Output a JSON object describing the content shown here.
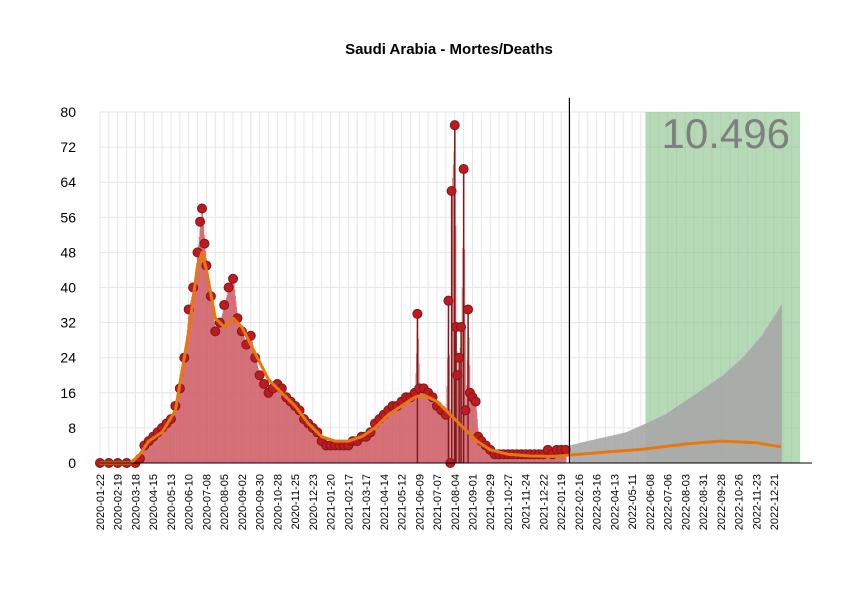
{
  "chart_data": {
    "type": "bar",
    "title": "Saudi Arabia - Mortes/Deaths",
    "total_label": "10.496",
    "xlabel": "",
    "ylabel": "",
    "ylim": [
      0,
      80
    ],
    "y_ticks": [
      0,
      8,
      16,
      24,
      32,
      40,
      48,
      56,
      64,
      72,
      80
    ],
    "x_range": [
      "2020-01-22",
      "2023-01-31"
    ],
    "x_ticks": [
      "2020-01-22",
      "2020-02-19",
      "2020-03-18",
      "2020-04-15",
      "2020-05-13",
      "2020-06-10",
      "2020-07-08",
      "2020-08-05",
      "2020-09-02",
      "2020-09-30",
      "2020-10-28",
      "2020-11-25",
      "2020-12-23",
      "2021-01-20",
      "2021-02-17",
      "2021-03-17",
      "2021-04-14",
      "2021-05-12",
      "2021-06-09",
      "2021-07-07",
      "2021-08-04",
      "2021-09-01",
      "2021-09-29",
      "2021-10-27",
      "2021-11-24",
      "2021-12-22",
      "2022-01-19",
      "2022-02-16",
      "2022-03-16",
      "2022-04-13",
      "2022-05-11",
      "2022-06-08",
      "2022-07-06",
      "2022-08-03",
      "2022-08-31",
      "2022-09-28",
      "2022-10-26",
      "2022-11-23",
      "2022-12-21"
    ],
    "today_marker": "2022-02-01",
    "forecast_band": [
      "2022-06-01",
      "2023-01-31"
    ],
    "grid": true,
    "colors": {
      "observed_bar": "#d0626a",
      "observed_point": "#c0191f",
      "point_edge": "#7a1a1a",
      "smooth_line": "#e8780e",
      "projection_bar": "#a8a8a8",
      "forecast_band": "#8fc48f",
      "grid": "#e6e6e6"
    },
    "observed": [
      {
        "date": "2020-01-22",
        "value": 0
      },
      {
        "date": "2020-02-05",
        "value": 0
      },
      {
        "date": "2020-02-19",
        "value": 0
      },
      {
        "date": "2020-03-04",
        "value": 0
      },
      {
        "date": "2020-03-18",
        "value": 0
      },
      {
        "date": "2020-03-25",
        "value": 1
      },
      {
        "date": "2020-04-01",
        "value": 4
      },
      {
        "date": "2020-04-08",
        "value": 5
      },
      {
        "date": "2020-04-15",
        "value": 6
      },
      {
        "date": "2020-04-22",
        "value": 7
      },
      {
        "date": "2020-04-29",
        "value": 8
      },
      {
        "date": "2020-05-06",
        "value": 9
      },
      {
        "date": "2020-05-13",
        "value": 10
      },
      {
        "date": "2020-05-20",
        "value": 13
      },
      {
        "date": "2020-05-27",
        "value": 17
      },
      {
        "date": "2020-06-03",
        "value": 24
      },
      {
        "date": "2020-06-10",
        "value": 35
      },
      {
        "date": "2020-06-17",
        "value": 40
      },
      {
        "date": "2020-06-24",
        "value": 48
      },
      {
        "date": "2020-06-28",
        "value": 55
      },
      {
        "date": "2020-07-01",
        "value": 58
      },
      {
        "date": "2020-07-05",
        "value": 50
      },
      {
        "date": "2020-07-08",
        "value": 45
      },
      {
        "date": "2020-07-15",
        "value": 38
      },
      {
        "date": "2020-07-22",
        "value": 30
      },
      {
        "date": "2020-07-29",
        "value": 32
      },
      {
        "date": "2020-08-05",
        "value": 36
      },
      {
        "date": "2020-08-12",
        "value": 40
      },
      {
        "date": "2020-08-19",
        "value": 42
      },
      {
        "date": "2020-08-26",
        "value": 33
      },
      {
        "date": "2020-09-02",
        "value": 30
      },
      {
        "date": "2020-09-09",
        "value": 27
      },
      {
        "date": "2020-09-16",
        "value": 29
      },
      {
        "date": "2020-09-23",
        "value": 24
      },
      {
        "date": "2020-09-30",
        "value": 20
      },
      {
        "date": "2020-10-07",
        "value": 18
      },
      {
        "date": "2020-10-14",
        "value": 16
      },
      {
        "date": "2020-10-21",
        "value": 17
      },
      {
        "date": "2020-10-28",
        "value": 18
      },
      {
        "date": "2020-11-04",
        "value": 17
      },
      {
        "date": "2020-11-11",
        "value": 15
      },
      {
        "date": "2020-11-18",
        "value": 14
      },
      {
        "date": "2020-11-25",
        "value": 13
      },
      {
        "date": "2020-12-02",
        "value": 12
      },
      {
        "date": "2020-12-09",
        "value": 10
      },
      {
        "date": "2020-12-16",
        "value": 9
      },
      {
        "date": "2020-12-23",
        "value": 8
      },
      {
        "date": "2020-12-30",
        "value": 7
      },
      {
        "date": "2021-01-06",
        "value": 5
      },
      {
        "date": "2021-01-13",
        "value": 4
      },
      {
        "date": "2021-01-20",
        "value": 4
      },
      {
        "date": "2021-01-27",
        "value": 4
      },
      {
        "date": "2021-02-03",
        "value": 4
      },
      {
        "date": "2021-02-10",
        "value": 4
      },
      {
        "date": "2021-02-17",
        "value": 4
      },
      {
        "date": "2021-02-24",
        "value": 5
      },
      {
        "date": "2021-03-03",
        "value": 5
      },
      {
        "date": "2021-03-10",
        "value": 6
      },
      {
        "date": "2021-03-17",
        "value": 6
      },
      {
        "date": "2021-03-24",
        "value": 7
      },
      {
        "date": "2021-03-31",
        "value": 9
      },
      {
        "date": "2021-04-07",
        "value": 10
      },
      {
        "date": "2021-04-14",
        "value": 11
      },
      {
        "date": "2021-04-21",
        "value": 12
      },
      {
        "date": "2021-04-28",
        "value": 13
      },
      {
        "date": "2021-05-05",
        "value": 13
      },
      {
        "date": "2021-05-12",
        "value": 14
      },
      {
        "date": "2021-05-19",
        "value": 15
      },
      {
        "date": "2021-05-26",
        "value": 15
      },
      {
        "date": "2021-06-02",
        "value": 16
      },
      {
        "date": "2021-06-06",
        "value": 34
      },
      {
        "date": "2021-06-09",
        "value": 17
      },
      {
        "date": "2021-06-16",
        "value": 17
      },
      {
        "date": "2021-06-23",
        "value": 16
      },
      {
        "date": "2021-06-30",
        "value": 15
      },
      {
        "date": "2021-07-07",
        "value": 13
      },
      {
        "date": "2021-07-14",
        "value": 12
      },
      {
        "date": "2021-07-21",
        "value": 11
      },
      {
        "date": "2021-07-25",
        "value": 37
      },
      {
        "date": "2021-07-28",
        "value": 0
      },
      {
        "date": "2021-07-30",
        "value": 62
      },
      {
        "date": "2021-08-04",
        "value": 77
      },
      {
        "date": "2021-08-06",
        "value": 31
      },
      {
        "date": "2021-08-08",
        "value": 20
      },
      {
        "date": "2021-08-11",
        "value": 24
      },
      {
        "date": "2021-08-14",
        "value": 31
      },
      {
        "date": "2021-08-18",
        "value": 67
      },
      {
        "date": "2021-08-21",
        "value": 12
      },
      {
        "date": "2021-08-25",
        "value": 35
      },
      {
        "date": "2021-08-28",
        "value": 16
      },
      {
        "date": "2021-09-01",
        "value": 15
      },
      {
        "date": "2021-09-06",
        "value": 14
      },
      {
        "date": "2021-09-10",
        "value": 6
      },
      {
        "date": "2021-09-15",
        "value": 5
      },
      {
        "date": "2021-09-22",
        "value": 4
      },
      {
        "date": "2021-09-29",
        "value": 3
      },
      {
        "date": "2021-10-06",
        "value": 2
      },
      {
        "date": "2021-10-13",
        "value": 2
      },
      {
        "date": "2021-10-20",
        "value": 2
      },
      {
        "date": "2021-10-27",
        "value": 2
      },
      {
        "date": "2021-11-03",
        "value": 2
      },
      {
        "date": "2021-11-10",
        "value": 2
      },
      {
        "date": "2021-11-17",
        "value": 2
      },
      {
        "date": "2021-11-24",
        "value": 2
      },
      {
        "date": "2021-12-01",
        "value": 2
      },
      {
        "date": "2021-12-08",
        "value": 2
      },
      {
        "date": "2021-12-15",
        "value": 2
      },
      {
        "date": "2021-12-22",
        "value": 2
      },
      {
        "date": "2021-12-29",
        "value": 3
      },
      {
        "date": "2022-01-05",
        "value": 2
      },
      {
        "date": "2022-01-12",
        "value": 3
      },
      {
        "date": "2022-01-19",
        "value": 3
      },
      {
        "date": "2022-01-26",
        "value": 3
      }
    ],
    "smoothed": [
      {
        "date": "2020-01-22",
        "value": 0
      },
      {
        "date": "2020-03-11",
        "value": 0
      },
      {
        "date": "2020-03-25",
        "value": 2
      },
      {
        "date": "2020-04-08",
        "value": 5
      },
      {
        "date": "2020-04-29",
        "value": 7
      },
      {
        "date": "2020-05-20",
        "value": 12
      },
      {
        "date": "2020-06-10",
        "value": 30
      },
      {
        "date": "2020-06-24",
        "value": 45
      },
      {
        "date": "2020-07-01",
        "value": 48
      },
      {
        "date": "2020-07-08",
        "value": 44
      },
      {
        "date": "2020-07-22",
        "value": 33
      },
      {
        "date": "2020-08-05",
        "value": 31
      },
      {
        "date": "2020-08-19",
        "value": 33
      },
      {
        "date": "2020-09-02",
        "value": 31
      },
      {
        "date": "2020-09-23",
        "value": 25
      },
      {
        "date": "2020-10-14",
        "value": 19
      },
      {
        "date": "2020-11-04",
        "value": 16
      },
      {
        "date": "2020-11-25",
        "value": 13
      },
      {
        "date": "2020-12-16",
        "value": 9
      },
      {
        "date": "2021-01-06",
        "value": 6
      },
      {
        "date": "2021-01-27",
        "value": 5
      },
      {
        "date": "2021-02-17",
        "value": 5
      },
      {
        "date": "2021-03-10",
        "value": 6
      },
      {
        "date": "2021-03-31",
        "value": 8
      },
      {
        "date": "2021-04-21",
        "value": 11
      },
      {
        "date": "2021-05-12",
        "value": 13
      },
      {
        "date": "2021-06-02",
        "value": 15
      },
      {
        "date": "2021-06-16",
        "value": 15.5
      },
      {
        "date": "2021-07-07",
        "value": 14
      },
      {
        "date": "2021-07-28",
        "value": 11
      },
      {
        "date": "2021-08-18",
        "value": 8
      },
      {
        "date": "2021-09-08",
        "value": 5
      },
      {
        "date": "2021-09-29",
        "value": 3
      },
      {
        "date": "2021-10-27",
        "value": 2
      },
      {
        "date": "2021-12-01",
        "value": 1.6
      },
      {
        "date": "2022-01-05",
        "value": 1.5
      },
      {
        "date": "2022-02-01",
        "value": 1.8
      },
      {
        "date": "2022-04-01",
        "value": 2.5
      },
      {
        "date": "2022-06-01",
        "value": 3.2
      },
      {
        "date": "2022-08-01",
        "value": 4.3
      },
      {
        "date": "2022-09-28",
        "value": 5
      },
      {
        "date": "2022-11-23",
        "value": 4.6
      },
      {
        "date": "2023-01-01",
        "value": 3.7
      }
    ],
    "projection": [
      {
        "date": "2022-02-01",
        "value": 4
      },
      {
        "date": "2022-03-01",
        "value": 5
      },
      {
        "date": "2022-04-01",
        "value": 6
      },
      {
        "date": "2022-05-01",
        "value": 7
      },
      {
        "date": "2022-06-01",
        "value": 9
      },
      {
        "date": "2022-07-01",
        "value": 11
      },
      {
        "date": "2022-08-01",
        "value": 14
      },
      {
        "date": "2022-09-01",
        "value": 17
      },
      {
        "date": "2022-10-01",
        "value": 20
      },
      {
        "date": "2022-11-01",
        "value": 24
      },
      {
        "date": "2022-12-01",
        "value": 29
      },
      {
        "date": "2023-01-01",
        "value": 36
      }
    ]
  }
}
